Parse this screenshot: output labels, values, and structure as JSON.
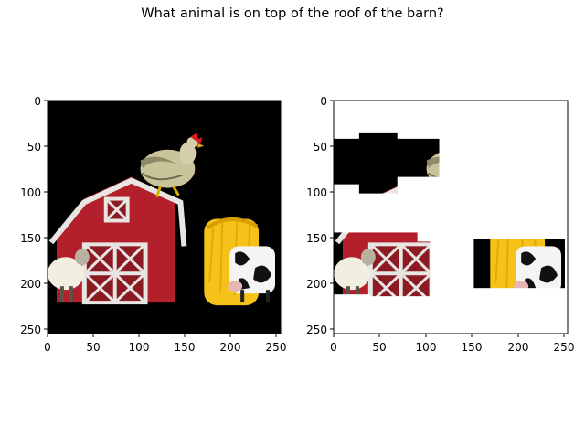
{
  "question": "What animal is on top of the roof of the barn?",
  "axes": {
    "x_ticks": [
      "0",
      "50",
      "100",
      "150",
      "200",
      "250"
    ],
    "y_ticks": [
      "0",
      "50",
      "100",
      "150",
      "200",
      "250"
    ]
  },
  "panels": [
    {
      "name": "original",
      "description_hidden": true
    },
    {
      "name": "masked",
      "description_hidden": true
    }
  ],
  "colors": {
    "background": "#000000",
    "barn_red": "#b3202b",
    "barn_trim": "#e8e6e3",
    "hay_yellow": "#f5c21a",
    "hen_body": "#c9c49a",
    "comb_red": "#e01818"
  }
}
